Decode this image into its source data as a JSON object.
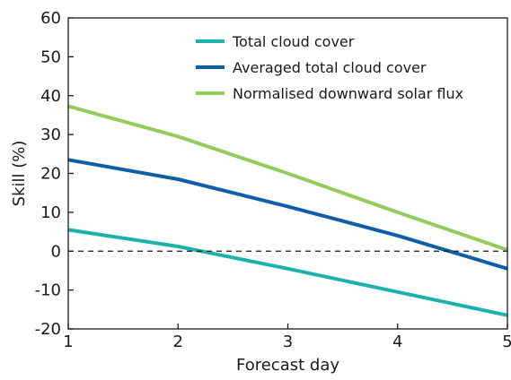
{
  "chart_data": {
    "type": "line",
    "title": "",
    "xlabel": "Forecast day",
    "ylabel": "Skill (%)",
    "x": [
      1,
      2,
      3,
      4,
      5
    ],
    "xlim": [
      1,
      5
    ],
    "ylim": [
      -20,
      60
    ],
    "xticks": [
      1,
      2,
      3,
      4,
      5
    ],
    "yticks": [
      -20,
      -10,
      0,
      10,
      20,
      30,
      40,
      50,
      60
    ],
    "grid": false,
    "reference_line": {
      "y": 0,
      "style": "dashed"
    },
    "legend_position": "top-right",
    "series": [
      {
        "name": "Total cloud cover",
        "color": "#1ab2ab",
        "values": [
          5.5,
          1.2,
          -4.5,
          -10.5,
          -16.5
        ]
      },
      {
        "name": "Averaged total cloud cover",
        "color": "#0f5ea8",
        "values": [
          23.5,
          18.5,
          11.5,
          4,
          -4.5
        ]
      },
      {
        "name": "Normalised downward solar flux",
        "color": "#93cc5c",
        "values": [
          37.3,
          29.5,
          20,
          10,
          0.3
        ]
      }
    ]
  }
}
